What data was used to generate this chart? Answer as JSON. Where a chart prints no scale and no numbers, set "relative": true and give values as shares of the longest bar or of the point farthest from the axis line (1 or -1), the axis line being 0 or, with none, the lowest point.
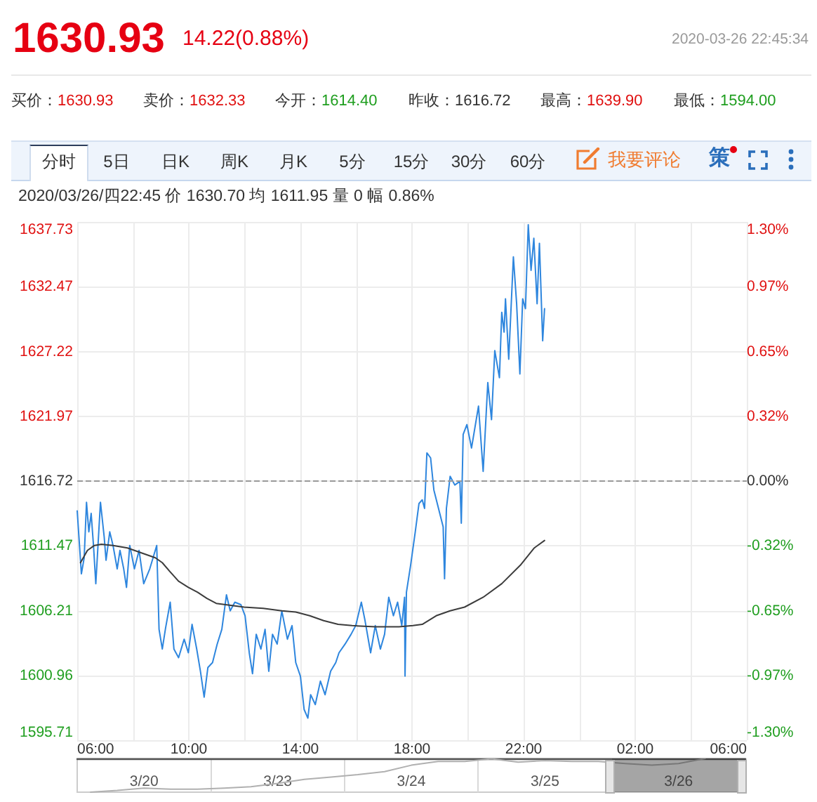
{
  "chart_data": [
    {
      "type": "line",
      "title": "1630.93",
      "subtitle": "14.22(0.88%)",
      "annotations": [
        "2020-03-26 22:45:34",
        "买价：",
        "1630.93",
        "卖价：",
        "1632.33",
        "今开：",
        "1614.40",
        "昨收：",
        "1616.72",
        "最高：",
        "1639.90",
        "最低：",
        "1594.00",
        "分时",
        "5日",
        "日K",
        "周K",
        "月K",
        "5分",
        "15分",
        "30分",
        "60分",
        "我要评论",
        "策",
        "2020/03/26/四22:45 价 1630.70 均 1611.95 量 0 幅 0.86%"
      ],
      "series": [
        {
          "color": "#2e86de",
          "x": [
            "2020-03-26T06:00",
            "2020-03-26T06:09",
            "2020-03-26T06:15",
            "2020-03-26T06:20",
            "2020-03-26T06:25",
            "2020-03-26T06:30",
            "2020-03-26T06:35",
            "2020-03-26T06:40",
            "2020-03-26T06:50",
            "2020-03-26T06:58",
            "2020-03-26T07:02",
            "2020-03-26T07:10",
            "2020-03-26T07:17",
            "2020-03-26T07:26",
            "2020-03-26T07:32",
            "2020-03-26T07:40",
            "2020-03-26T07:46",
            "2020-03-26T07:53",
            "2020-03-26T08:03",
            "2020-03-26T08:13",
            "2020-03-26T08:23",
            "2020-03-26T08:36",
            "2020-03-26T08:51",
            "2020-03-26T08:56",
            "2020-03-26T09:03",
            "2020-03-26T09:10",
            "2020-03-26T09:20",
            "2020-03-26T09:28",
            "2020-03-26T09:38",
            "2020-03-26T09:50",
            "2020-03-26T09:59",
            "2020-03-26T10:07",
            "2020-03-26T10:17",
            "2020-03-26T10:25",
            "2020-03-26T10:33",
            "2020-03-26T10:41",
            "2020-03-26T10:51",
            "2020-03-26T11:01",
            "2020-03-26T11:11",
            "2020-03-26T11:21",
            "2020-03-26T11:29",
            "2020-03-26T11:39",
            "2020-03-26T11:52",
            "2020-03-26T12:01",
            "2020-03-26T12:10",
            "2020-03-26T12:17",
            "2020-03-26T12:25",
            "2020-03-26T12:35",
            "2020-03-26T12:44",
            "2020-03-26T12:52",
            "2020-03-26T13:00",
            "2020-03-26T13:10",
            "2020-03-26T13:20",
            "2020-03-26T13:32",
            "2020-03-26T13:42",
            "2020-03-26T13:50",
            "2020-03-26T14:00",
            "2020-03-26T14:08",
            "2020-03-26T14:16",
            "2020-03-26T14:22",
            "2020-03-26T14:32",
            "2020-03-26T14:43",
            "2020-03-26T14:53",
            "2020-03-26T15:05",
            "2020-03-26T15:16",
            "2020-03-26T15:23",
            "2020-03-26T15:36",
            "2020-03-26T15:49",
            "2020-03-26T15:59",
            "2020-03-26T16:11",
            "2020-03-26T16:19",
            "2020-03-26T16:31",
            "2020-03-26T16:41",
            "2020-03-26T16:52",
            "2020-03-26T17:01",
            "2020-03-26T17:10",
            "2020-03-26T17:20",
            "2020-03-26T17:29",
            "2020-03-26T17:38",
            "2020-03-26T17:44",
            "2020-03-26T17:45",
            "2020-03-26T17:48",
            "2020-03-26T17:57",
            "2020-03-26T18:07",
            "2020-03-26T18:15",
            "2020-03-26T18:22",
            "2020-03-26T18:27",
            "2020-03-26T18:32",
            "2020-03-26T18:40",
            "2020-03-26T18:47",
            "2020-03-26T18:57",
            "2020-03-26T19:07",
            "2020-03-26T19:10",
            "2020-03-26T19:14",
            "2020-03-26T19:22",
            "2020-03-26T19:32",
            "2020-03-26T19:43",
            "2020-03-26T19:46",
            "2020-03-26T19:50",
            "2020-03-26T19:58",
            "2020-03-26T20:08",
            "2020-03-26T20:23",
            "2020-03-26T20:33",
            "2020-03-26T20:43",
            "2020-03-26T20:51",
            "2020-03-26T20:58",
            "2020-03-26T21:08",
            "2020-03-26T21:13",
            "2020-03-26T21:18",
            "2020-03-26T21:21",
            "2020-03-26T21:28",
            "2020-03-26T21:38",
            "2020-03-26T21:45",
            "2020-03-26T21:52",
            "2020-03-26T21:58",
            "2020-03-26T22:04",
            "2020-03-26T22:10",
            "2020-03-26T22:16",
            "2020-03-26T22:22",
            "2020-03-26T22:29",
            "2020-03-26T22:34",
            "2020-03-26T22:41",
            "2020-03-26T22:45"
          ],
          "values": [
            1614.3,
            1609.2,
            1610.5,
            1615.0,
            1612.6,
            1614.1,
            1611.5,
            1608.4,
            1615.0,
            1612.2,
            1610.3,
            1612.6,
            1611.5,
            1609.6,
            1611.1,
            1609.6,
            1608.1,
            1611.5,
            1609.6,
            1611.1,
            1608.4,
            1609.6,
            1611.5,
            1604.7,
            1603.1,
            1604.8,
            1606.9,
            1603.1,
            1602.4,
            1603.9,
            1602.8,
            1605.1,
            1603.1,
            1601.3,
            1599.2,
            1601.6,
            1602.0,
            1603.5,
            1604.7,
            1607.5,
            1606.2,
            1606.9,
            1606.7,
            1605.8,
            1602.8,
            1601.1,
            1604.3,
            1603.1,
            1604.7,
            1601.3,
            1604.3,
            1603.5,
            1606.2,
            1603.9,
            1605.0,
            1602.0,
            1600.9,
            1598.2,
            1597.5,
            1599.4,
            1598.6,
            1600.5,
            1599.4,
            1601.3,
            1602.0,
            1602.8,
            1603.5,
            1604.3,
            1605.0,
            1606.9,
            1605.4,
            1602.8,
            1605.0,
            1603.1,
            1604.3,
            1607.3,
            1605.8,
            1606.9,
            1605.0,
            1607.3,
            1600.9,
            1607.7,
            1609.9,
            1612.6,
            1614.9,
            1615.2,
            1614.5,
            1619.0,
            1618.6,
            1616.0,
            1614.5,
            1613.0,
            1608.8,
            1614.5,
            1617.1,
            1616.4,
            1616.7,
            1613.3,
            1620.5,
            1621.3,
            1619.4,
            1622.8,
            1617.5,
            1624.7,
            1621.7,
            1627.3,
            1625.1,
            1630.4,
            1628.8,
            1631.5,
            1626.6,
            1634.9,
            1631.1,
            1625.4,
            1631.5,
            1630.7,
            1637.5,
            1633.8,
            1636.4,
            1631.1,
            1636.0,
            1628.1,
            1630.7
          ]
        },
        {
          "color": "#3c3c3c",
          "x": [
            "2020-03-26T06:07",
            "2020-03-26T06:22",
            "2020-03-26T06:37",
            "2020-03-26T06:52",
            "2020-03-26T07:17",
            "2020-03-26T07:48",
            "2020-03-26T08:18",
            "2020-03-26T08:48",
            "2020-03-26T09:03",
            "2020-03-26T09:19",
            "2020-03-26T09:38",
            "2020-03-26T09:59",
            "2020-03-26T10:19",
            "2020-03-26T10:39",
            "2020-03-26T10:59",
            "2020-03-26T11:19",
            "2020-03-26T11:59",
            "2020-03-26T12:40",
            "2020-03-26T13:20",
            "2020-03-26T13:50",
            "2020-03-26T14:20",
            "2020-03-26T14:50",
            "2020-03-26T15:21",
            "2020-03-26T15:51",
            "2020-03-26T16:41",
            "2020-03-26T17:32",
            "2020-03-26T18:02",
            "2020-03-26T18:22",
            "2020-03-26T18:52",
            "2020-03-26T19:22",
            "2020-03-26T19:53",
            "2020-03-26T20:33",
            "2020-03-26T21:13",
            "2020-03-26T21:53",
            "2020-03-26T22:23",
            "2020-03-26T22:45"
          ],
          "values": [
            1610.1,
            1611.1,
            1611.5,
            1611.6,
            1611.5,
            1611.3,
            1610.9,
            1610.5,
            1610.1,
            1609.4,
            1608.6,
            1608.1,
            1607.7,
            1607.2,
            1606.8,
            1606.7,
            1606.5,
            1606.4,
            1606.2,
            1606.1,
            1605.8,
            1605.4,
            1605.1,
            1605.0,
            1604.9,
            1604.9,
            1605.0,
            1605.1,
            1605.8,
            1606.2,
            1606.5,
            1607.3,
            1608.4,
            1609.9,
            1611.3,
            1611.9
          ]
        }
      ],
      "xlim": [
        "2020-03-26T06:00",
        "2020-03-27T06:00"
      ],
      "xticks": [
        {
          "value": "2020-03-26T06:00",
          "label": "06:00"
        },
        {
          "value": "2020-03-26T08:00",
          "label": null
        },
        {
          "value": "2020-03-26T10:00",
          "label": "10:00"
        },
        {
          "value": "2020-03-26T12:00",
          "label": null
        },
        {
          "value": "2020-03-26T14:00",
          "label": "14:00"
        },
        {
          "value": "2020-03-26T16:00",
          "label": null
        },
        {
          "value": "2020-03-26T18:00",
          "label": "18:00"
        },
        {
          "value": "2020-03-26T20:00",
          "label": null
        },
        {
          "value": "2020-03-26T22:00",
          "label": "22:00"
        },
        {
          "value": "2020-03-27T00:00",
          "label": null
        },
        {
          "value": "2020-03-27T02:00",
          "label": "02:00"
        },
        {
          "value": "2020-03-27T04:00",
          "label": null
        },
        {
          "value": "2020-03-27T06:00",
          "label": "06:00"
        }
      ],
      "ylim": [
        1595.71,
        1637.73
      ],
      "yticks": [
        1595.71,
        1600.96,
        1606.21,
        1611.47,
        1616.72,
        1621.97,
        1627.22,
        1632.47,
        1637.73
      ],
      "y2lim": [
        -1.2995,
        1.2995
      ],
      "y2ticks": [
        {
          "value": -1.2995,
          "label": "-1.30%"
        },
        {
          "value": -0.9748,
          "label": "-0.97%"
        },
        {
          "value": -0.6501,
          "label": "-0.65%"
        },
        {
          "value": -0.3247,
          "label": "-0.32%"
        },
        {
          "value": 0,
          "label": "0.00%"
        },
        {
          "value": 0.3247,
          "label": "0.32%"
        },
        {
          "value": 0.6495,
          "label": "0.65%"
        },
        {
          "value": 0.9742,
          "label": "0.97%"
        },
        {
          "value": 1.2995,
          "label": "1.30%"
        }
      ],
      "ref_lines": [
        {
          "axis": "y",
          "value": 1616.72,
          "color": "#999999",
          "line_style": "dashed"
        }
      ],
      "grid": true,
      "marker": "none",
      "line_style": "solid"
    },
    {
      "type": "line",
      "relative": true,
      "categories": [
        null,
        null,
        "3/20",
        null,
        null,
        null,
        null,
        "3/23",
        null,
        null,
        null,
        null,
        "3/24",
        null,
        null,
        null,
        null,
        "3/25",
        null,
        null,
        null,
        null,
        "3/26",
        null,
        null
      ],
      "series": [
        {
          "color": "#b0b0b0",
          "values": [
            0,
            0.05,
            0.12,
            0.09,
            0.09,
            0.12,
            0.16,
            0.26,
            0.38,
            0.45,
            0.52,
            0.61,
            0.8,
            0.91,
            0.91,
            0.99,
            0.89,
            0.94,
            0.91,
            0.91,
            0.85,
            0.8,
            0.85,
            1,
            null
          ]
        }
      ],
      "grid": "x",
      "marker": "none"
    }
  ]
}
